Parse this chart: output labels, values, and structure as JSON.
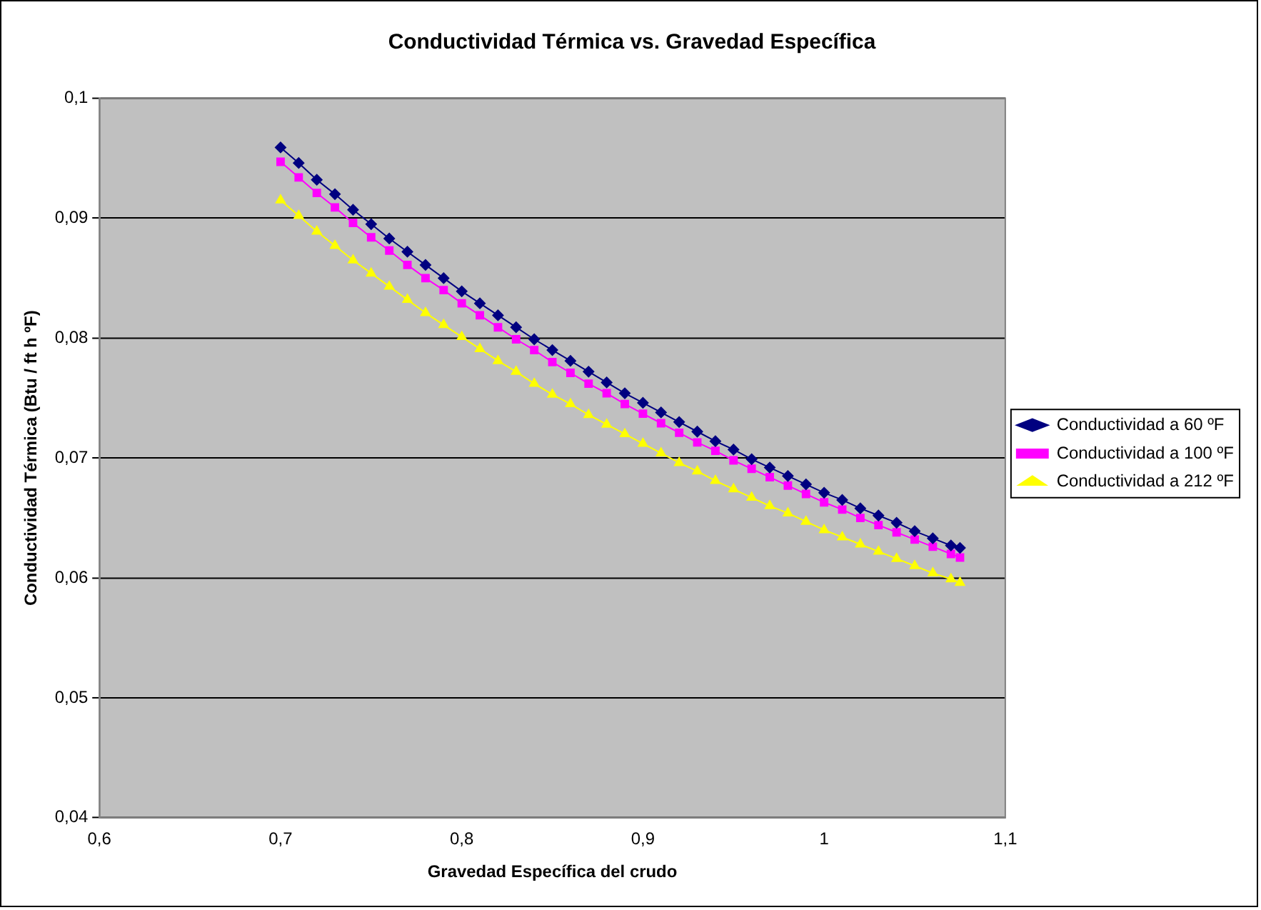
{
  "chart_data": {
    "type": "line",
    "title": "Conductividad Térmica vs. Gravedad Específica",
    "xlabel": "Gravedad Específica del crudo",
    "ylabel": "Conductividad Térmica (Btu / ft h ºF)",
    "x": [
      0.7,
      0.71,
      0.72,
      0.73,
      0.74,
      0.75,
      0.76,
      0.77,
      0.78,
      0.79,
      0.8,
      0.81,
      0.82,
      0.83,
      0.84,
      0.85,
      0.86,
      0.87,
      0.88,
      0.89,
      0.9,
      0.91,
      0.92,
      0.93,
      0.94,
      0.95,
      0.96,
      0.97,
      0.98,
      0.99,
      1.0,
      1.01,
      1.02,
      1.03,
      1.04,
      1.05,
      1.06,
      1.07,
      1.075
    ],
    "series": [
      {
        "name": "Conductividad a 60 ºF",
        "color": "#000080",
        "marker": "diamond",
        "values": [
          0.0959,
          0.0946,
          0.0932,
          0.092,
          0.0907,
          0.0895,
          0.0883,
          0.0872,
          0.0861,
          0.085,
          0.0839,
          0.0829,
          0.0819,
          0.0809,
          0.0799,
          0.079,
          0.0781,
          0.0772,
          0.0763,
          0.0754,
          0.0746,
          0.0738,
          0.073,
          0.0722,
          0.0714,
          0.0707,
          0.0699,
          0.0692,
          0.0685,
          0.0678,
          0.0671,
          0.0665,
          0.0658,
          0.0652,
          0.0646,
          0.0639,
          0.0633,
          0.0627,
          0.0625
        ]
      },
      {
        "name": "Conductividad a 100 ºF",
        "color": "#ff00ff",
        "marker": "square",
        "values": [
          0.0947,
          0.0934,
          0.0921,
          0.0909,
          0.0896,
          0.0884,
          0.0873,
          0.0861,
          0.085,
          0.084,
          0.0829,
          0.0819,
          0.0809,
          0.0799,
          0.079,
          0.078,
          0.0771,
          0.0762,
          0.0754,
          0.0745,
          0.0737,
          0.0729,
          0.0721,
          0.0713,
          0.0706,
          0.0698,
          0.0691,
          0.0684,
          0.0677,
          0.067,
          0.0663,
          0.0657,
          0.065,
          0.0644,
          0.0638,
          0.0632,
          0.0626,
          0.062,
          0.0617
        ]
      },
      {
        "name": "Conductividad a 212 ºF",
        "color": "#ffff00",
        "marker": "triangle",
        "values": [
          0.0915,
          0.0902,
          0.0889,
          0.0877,
          0.0865,
          0.0854,
          0.0843,
          0.0832,
          0.0821,
          0.0811,
          0.0801,
          0.0791,
          0.0781,
          0.0772,
          0.0762,
          0.0753,
          0.0745,
          0.0736,
          0.0728,
          0.072,
          0.0712,
          0.0704,
          0.0696,
          0.0689,
          0.0681,
          0.0674,
          0.0667,
          0.066,
          0.0654,
          0.0647,
          0.064,
          0.0634,
          0.0628,
          0.0622,
          0.0616,
          0.061,
          0.0604,
          0.0599,
          0.0596
        ]
      }
    ],
    "xlim": [
      0.6,
      1.1
    ],
    "xticks": [
      {
        "value": 0.6,
        "label": "0,6"
      },
      {
        "value": 0.7,
        "label": "0,7"
      },
      {
        "value": 0.8,
        "label": "0,8"
      },
      {
        "value": 0.9,
        "label": "0,9"
      },
      {
        "value": 1,
        "label": "1"
      },
      {
        "value": 1.1,
        "label": "1,1"
      }
    ],
    "ylim": [
      0.04,
      0.1
    ],
    "yticks": [
      {
        "value": 0.04,
        "label": "0,04"
      },
      {
        "value": 0.05,
        "label": "0,05"
      },
      {
        "value": 0.06,
        "label": "0,06"
      },
      {
        "value": 0.07,
        "label": "0,07"
      },
      {
        "value": 0.08,
        "label": "0,08"
      },
      {
        "value": 0.09,
        "label": "0,09"
      },
      {
        "value": 0.1,
        "label": "0,1"
      }
    ],
    "grid": "y",
    "legend": "right",
    "line_style": "solid"
  }
}
